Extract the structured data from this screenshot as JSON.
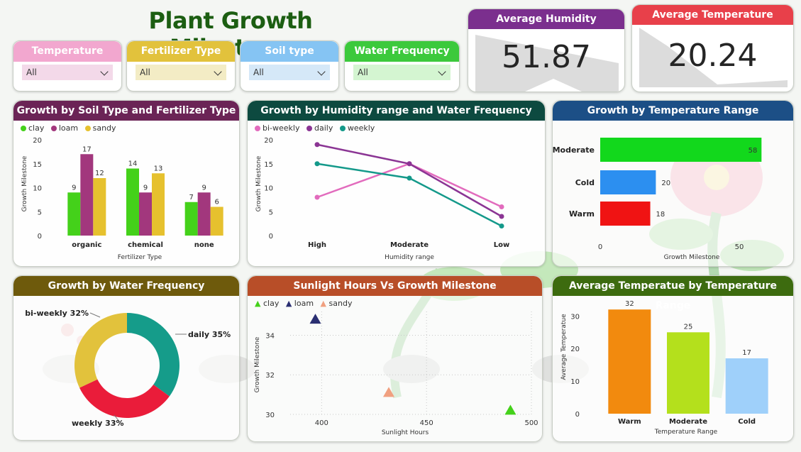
{
  "title": "Plant Growth Milestone",
  "slicers": [
    {
      "label": "Temperature Range",
      "value": "All",
      "head_color": "#f2a7cf",
      "text_color": "#ffffff",
      "box_color": "#f3d9e9"
    },
    {
      "label": "Fertilizer Type",
      "value": "All",
      "head_color": "#e2c23c",
      "text_color": "#ffffff",
      "box_color": "#f3ecc5"
    },
    {
      "label": "Soil type",
      "value": "All",
      "head_color": "#85c4f3",
      "text_color": "#ffffff",
      "box_color": "#d5e8f8"
    },
    {
      "label": "Water Frequency",
      "value": "All",
      "head_color": "#3cc93c",
      "text_color": "#ffffff",
      "box_color": "#d4f5d1"
    }
  ],
  "kpis": {
    "humidity": {
      "label": "Average Humidity",
      "value": "51.87",
      "color": "#7b2f8e"
    },
    "temperature": {
      "label": "Average Temperature",
      "value": "20.24",
      "color": "#e8404a"
    }
  },
  "charts": {
    "soil_fert": {
      "title": "Growth by Soil Type and Fertilizer Type",
      "title_color": "#6b2456",
      "legend": [
        {
          "name": "clay",
          "color": "#44d11a"
        },
        {
          "name": "loam",
          "color": "#a2377d"
        },
        {
          "name": "sandy",
          "color": "#e6c12e"
        }
      ],
      "ylabel": "Growth Milestone",
      "xlabel": "Fertilizer Type",
      "yticks": [
        "0",
        "5",
        "10",
        "15",
        "20"
      ],
      "categories": [
        "organic",
        "chemical",
        "none"
      ]
    },
    "humidity_water": {
      "title": "Growth by Humidity range and Water Frequency",
      "title_color": "#0d4a40",
      "legend": [
        {
          "name": "bi-weekly",
          "color": "#e26bbd"
        },
        {
          "name": "daily",
          "color": "#8b3594"
        },
        {
          "name": "weekly",
          "color": "#14998a"
        }
      ],
      "ylabel": "Growth Milestone",
      "xlabel": "Humidity range",
      "yticks": [
        "0",
        "5",
        "10",
        "15",
        "20"
      ],
      "categories": [
        "High",
        "Moderate",
        "Low"
      ]
    },
    "temp_range": {
      "title": "Growth by Temperature Range",
      "title_color": "#1c4f86",
      "xlabel": "Growth Milestone",
      "xticks": [
        "0",
        "50"
      ],
      "categories": [
        "Moderate",
        "Cold",
        "Warm"
      ]
    },
    "water_freq": {
      "title": "Growth by Water Frequency",
      "title_color": "#6e5a0c"
    },
    "sunlight": {
      "title": "Sunlight Hours Vs Growth Milestone",
      "title_color": "#b84e28",
      "legend": [
        {
          "name": "clay",
          "color": "#44d11a"
        },
        {
          "name": "loam",
          "color": "#2a2f72"
        },
        {
          "name": "sandy",
          "color": "#f0a080"
        }
      ],
      "ylabel": "Growth Milestone",
      "xlabel": "Sunlight Hours",
      "yticks": [
        "30",
        "32",
        "34"
      ],
      "xticks": [
        "400",
        "450",
        "500"
      ]
    },
    "avg_temp": {
      "title": "Average Temperatue by Temperature Range",
      "title_color": "#3d6b0f",
      "ylabel": "Average Temperatue",
      "xlabel": "Temperature Range",
      "yticks": [
        "0",
        "10",
        "20",
        "30"
      ],
      "categories": [
        "Warm",
        "Moderate",
        "Cold"
      ]
    }
  },
  "chart_data": [
    {
      "type": "bar",
      "title": "Growth by Soil Type and Fertilizer Type",
      "categories": [
        "organic",
        "chemical",
        "none"
      ],
      "series": [
        {
          "name": "clay",
          "values": [
            9,
            14,
            7
          ]
        },
        {
          "name": "loam",
          "values": [
            17,
            9,
            9
          ]
        },
        {
          "name": "sandy",
          "values": [
            12,
            13,
            6
          ]
        }
      ],
      "xlabel": "Fertilizer Type",
      "ylabel": "Growth Milestone",
      "ylim": [
        0,
        20
      ]
    },
    {
      "type": "line",
      "title": "Growth by Humidity range and Water Frequency",
      "categories": [
        "High",
        "Moderate",
        "Low"
      ],
      "series": [
        {
          "name": "bi-weekly",
          "values": [
            8,
            15,
            6
          ]
        },
        {
          "name": "daily",
          "values": [
            19,
            15,
            4
          ]
        },
        {
          "name": "weekly",
          "values": [
            15,
            12,
            2
          ]
        }
      ],
      "xlabel": "Humidity range",
      "ylabel": "Growth Milestone",
      "ylim": [
        0,
        20
      ]
    },
    {
      "type": "bar",
      "title": "Growth by Temperature Range",
      "orientation": "horizontal",
      "categories": [
        "Moderate",
        "Cold",
        "Warm"
      ],
      "values": [
        58,
        20,
        18
      ],
      "colors": [
        "#12d81c",
        "#2c8ff0",
        "#f01313"
      ],
      "xlabel": "Growth Milestone",
      "xlim": [
        0,
        62
      ]
    },
    {
      "type": "pie",
      "title": "Growth by Water Frequency",
      "labels": [
        "daily",
        "weekly",
        "bi-weekly"
      ],
      "values": [
        35,
        33,
        32
      ],
      "label_text": [
        "daily 35%",
        "weekly 33%",
        "bi-weekly 32%"
      ],
      "colors": [
        "#159c8a",
        "#ea1c3a",
        "#e2c23c"
      ]
    },
    {
      "type": "scatter",
      "title": "Sunlight Hours Vs Growth Milestone",
      "series": [
        {
          "name": "clay",
          "x": [
            490
          ],
          "y": [
            30.2
          ]
        },
        {
          "name": "loam",
          "x": [
            397
          ],
          "y": [
            34.8
          ]
        },
        {
          "name": "sandy",
          "x": [
            432
          ],
          "y": [
            31.1
          ]
        }
      ],
      "xlabel": "Sunlight Hours",
      "ylabel": "Growth Milestone",
      "xlim": [
        385,
        500
      ],
      "ylim": [
        30,
        35.2
      ]
    },
    {
      "type": "bar",
      "title": "Average Temperatue by Temperature Range",
      "categories": [
        "Warm",
        "Moderate",
        "Cold"
      ],
      "values": [
        32,
        25,
        17
      ],
      "colors": [
        "#f28a0e",
        "#b4e01c",
        "#9fd0fa"
      ],
      "xlabel": "Temperature Range",
      "ylabel": "Average Temperatue",
      "ylim": [
        0,
        34
      ]
    }
  ]
}
